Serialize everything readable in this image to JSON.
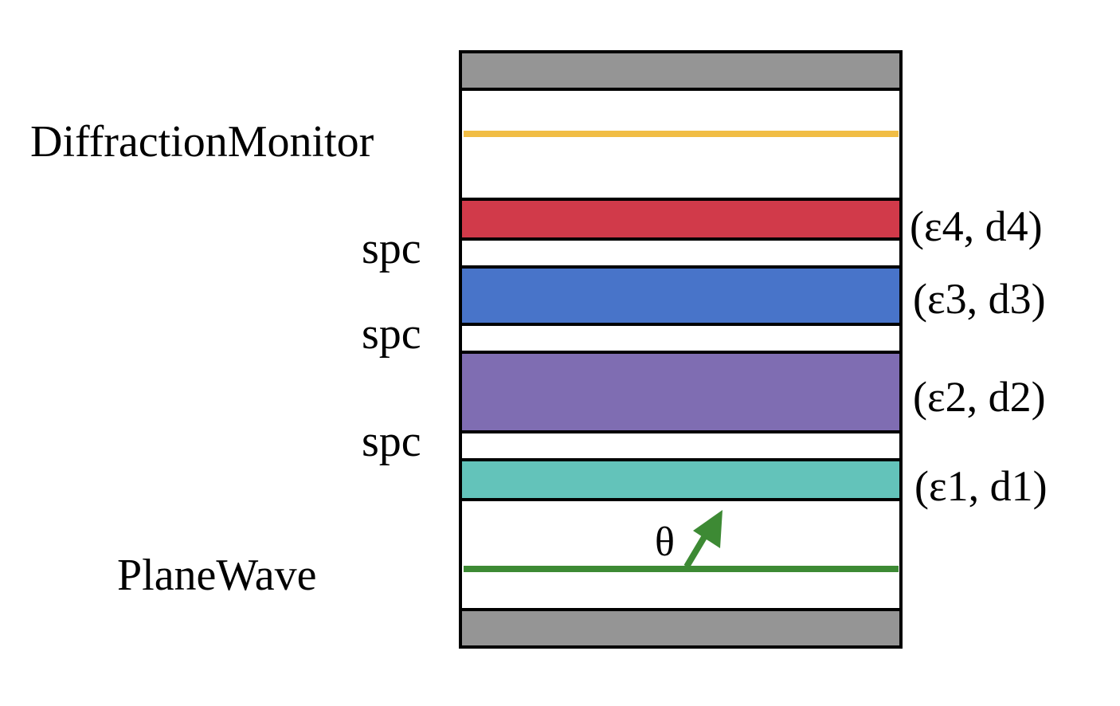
{
  "labels": {
    "monitor": "DiffractionMonitor",
    "source": "PlaneWave",
    "angle": "θ",
    "spacer_1": "spc",
    "spacer_2": "spc",
    "spacer_3": "spc"
  },
  "layers": [
    {
      "id": "layer4",
      "eps_symbol": "ε4",
      "d_symbol": "d4",
      "text": "(ε4, d4)",
      "color": "#d13a4a"
    },
    {
      "id": "layer3",
      "eps_symbol": "ε3",
      "d_symbol": "d3",
      "text": "(ε3, d3)",
      "color": "#4874c9"
    },
    {
      "id": "layer2",
      "eps_symbol": "ε2",
      "d_symbol": "d2",
      "text": "(ε2, d2)",
      "color": "#7f6db2"
    },
    {
      "id": "layer1",
      "eps_symbol": "ε1",
      "d_symbol": "d1",
      "text": "(ε1, d1)",
      "color": "#63c3ba"
    }
  ],
  "colors": {
    "boundary": "#959595",
    "monitor_line": "#f1bd45",
    "source_line": "#3d8a34",
    "outline": "#000000"
  }
}
